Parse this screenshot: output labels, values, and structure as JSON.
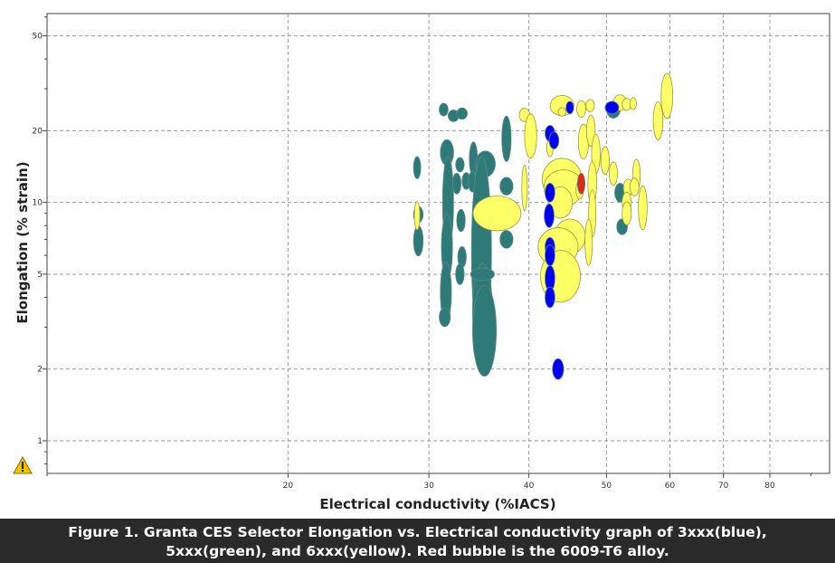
{
  "chart_data": {
    "type": "scatter",
    "title": "",
    "xlabel": "Electrical conductivity (%IACS)",
    "ylabel": "Elongation (% strain)",
    "xscale": "log",
    "yscale": "log",
    "xlim": [
      10,
      95
    ],
    "ylim": [
      0.73,
      62
    ],
    "grid": true,
    "legend": "none",
    "x_ticks": [
      20,
      30,
      40,
      50,
      60,
      70,
      80
    ],
    "y_ticks": [
      1,
      2,
      5,
      10,
      20,
      50
    ],
    "colors": {
      "blue": "#0000ee",
      "green": "#2e7a78",
      "yellow": "#ffff66",
      "red": "#e02a10",
      "outline": "#9a9a3a"
    },
    "series": [
      {
        "group": "green",
        "bubbles": [
          {
            "x": 29.0,
            "y": 14.0,
            "rx": 0.3,
            "ry": 1.5
          },
          {
            "x": 29.1,
            "y": 8.9,
            "rx": 0.4,
            "ry": 0.7
          },
          {
            "x": 29.1,
            "y": 6.9,
            "rx": 0.4,
            "ry": 1.0
          },
          {
            "x": 31.3,
            "y": 24.5,
            "rx": 0.4,
            "ry": 1.5
          },
          {
            "x": 32.2,
            "y": 23.1,
            "rx": 0.5,
            "ry": 1.3
          },
          {
            "x": 33.0,
            "y": 23.6,
            "rx": 0.5,
            "ry": 1.3
          },
          {
            "x": 31.6,
            "y": 16.2,
            "rx": 0.6,
            "ry": 2.0
          },
          {
            "x": 31.7,
            "y": 10.0,
            "rx": 0.5,
            "ry": 4.2
          },
          {
            "x": 31.6,
            "y": 6.5,
            "rx": 0.5,
            "ry": 2.0
          },
          {
            "x": 31.5,
            "y": 4.2,
            "rx": 0.5,
            "ry": 1.2
          },
          {
            "x": 31.4,
            "y": 3.3,
            "rx": 0.5,
            "ry": 0.3
          },
          {
            "x": 32.5,
            "y": 12.0,
            "rx": 0.4,
            "ry": 1.2
          },
          {
            "x": 32.8,
            "y": 14.4,
            "rx": 0.4,
            "ry": 1.0
          },
          {
            "x": 33.4,
            "y": 12.3,
            "rx": 0.4,
            "ry": 1.0
          },
          {
            "x": 32.9,
            "y": 8.4,
            "rx": 0.4,
            "ry": 0.9
          },
          {
            "x": 33.0,
            "y": 5.9,
            "rx": 0.4,
            "ry": 0.6
          },
          {
            "x": 32.8,
            "y": 5.0,
            "rx": 0.4,
            "ry": 0.5
          },
          {
            "x": 34.1,
            "y": 15.2,
            "rx": 0.4,
            "ry": 2.5
          },
          {
            "x": 34.0,
            "y": 12.2,
            "rx": 0.4,
            "ry": 1.2
          },
          {
            "x": 35.3,
            "y": 14.5,
            "rx": 1.0,
            "ry": 1.8
          },
          {
            "x": 34.9,
            "y": 6.2,
            "rx": 1.0,
            "ry": 4.5
          },
          {
            "x": 35.0,
            "y": 3.5,
            "rx": 1.0,
            "ry": 1.5
          },
          {
            "x": 35.2,
            "y": 2.9,
            "rx": 1.2,
            "ry": 1.2
          },
          {
            "x": 35.0,
            "y": 5.0,
            "rx": 1.2,
            "ry": 0.3
          },
          {
            "x": 37.5,
            "y": 18.5,
            "rx": 0.5,
            "ry": 4.0
          },
          {
            "x": 37.5,
            "y": 11.7,
            "rx": 0.7,
            "ry": 1.0
          },
          {
            "x": 37.5,
            "y": 7.0,
            "rx": 0.7,
            "ry": 0.6
          },
          {
            "x": 51.0,
            "y": 24.5,
            "rx": 1.0,
            "ry": 2.0
          },
          {
            "x": 52.0,
            "y": 11.0,
            "rx": 0.8,
            "ry": 1.0
          },
          {
            "x": 52.3,
            "y": 7.9,
            "rx": 0.8,
            "ry": 0.6
          }
        ]
      },
      {
        "group": "yellow",
        "bubbles": [
          {
            "x": 29.0,
            "y": 8.8,
            "rx": 0.2,
            "ry": 1.2
          },
          {
            "x": 36.5,
            "y": 9.0,
            "rx": 2.5,
            "ry": 1.5
          },
          {
            "x": 39.5,
            "y": 23.3,
            "rx": 0.6,
            "ry": 1.5
          },
          {
            "x": 40.2,
            "y": 19.0,
            "rx": 0.7,
            "ry": 4.0
          },
          {
            "x": 39.5,
            "y": 11.5,
            "rx": 0.2,
            "ry": 2.5
          },
          {
            "x": 44.0,
            "y": 25.5,
            "rx": 1.5,
            "ry": 2.5
          },
          {
            "x": 42.5,
            "y": 17.0,
            "rx": 0.4,
            "ry": 1.5
          },
          {
            "x": 44.0,
            "y": 12.5,
            "rx": 2.5,
            "ry": 2.5
          },
          {
            "x": 44.2,
            "y": 11.5,
            "rx": 2.5,
            "ry": 2.0
          },
          {
            "x": 43.8,
            "y": 10.0,
            "rx": 1.5,
            "ry": 1.5
          },
          {
            "x": 45.0,
            "y": 7.2,
            "rx": 2.0,
            "ry": 1.2
          },
          {
            "x": 43.5,
            "y": 6.5,
            "rx": 2.5,
            "ry": 1.2
          },
          {
            "x": 43.8,
            "y": 4.9,
            "rx": 2.5,
            "ry": 1.2
          },
          {
            "x": 44.0,
            "y": 24.0,
            "rx": 0.5,
            "ry": 1.0
          },
          {
            "x": 46.5,
            "y": 24.7,
            "rx": 0.6,
            "ry": 2.0
          },
          {
            "x": 47.7,
            "y": 25.5,
            "rx": 0.6,
            "ry": 1.5
          },
          {
            "x": 46.3,
            "y": 11.3,
            "rx": 0.5,
            "ry": 1.0
          },
          {
            "x": 46.8,
            "y": 18.0,
            "rx": 0.7,
            "ry": 3.0
          },
          {
            "x": 47.8,
            "y": 20.0,
            "rx": 0.6,
            "ry": 3.0
          },
          {
            "x": 48.5,
            "y": 16.0,
            "rx": 0.6,
            "ry": 3.0
          },
          {
            "x": 48.0,
            "y": 12.0,
            "rx": 0.6,
            "ry": 2.5
          },
          {
            "x": 48.0,
            "y": 9.0,
            "rx": 0.5,
            "ry": 2.0
          },
          {
            "x": 47.5,
            "y": 6.8,
            "rx": 0.5,
            "ry": 1.5
          },
          {
            "x": 49.8,
            "y": 15.0,
            "rx": 0.6,
            "ry": 2.0
          },
          {
            "x": 51.0,
            "y": 13.2,
            "rx": 0.6,
            "ry": 1.5
          },
          {
            "x": 52.0,
            "y": 26.2,
            "rx": 1.0,
            "ry": 2.0
          },
          {
            "x": 53.0,
            "y": 25.8,
            "rx": 0.7,
            "ry": 1.5
          },
          {
            "x": 54.0,
            "y": 26.0,
            "rx": 0.5,
            "ry": 1.5
          },
          {
            "x": 53.2,
            "y": 11.5,
            "rx": 0.7,
            "ry": 1.0
          },
          {
            "x": 53.0,
            "y": 10.0,
            "rx": 0.7,
            "ry": 1.0
          },
          {
            "x": 53.0,
            "y": 9.0,
            "rx": 0.7,
            "ry": 1.0
          },
          {
            "x": 54.5,
            "y": 13.0,
            "rx": 0.6,
            "ry": 2.0
          },
          {
            "x": 54.2,
            "y": 11.6,
            "rx": 0.7,
            "ry": 1.0
          },
          {
            "x": 55.5,
            "y": 9.5,
            "rx": 0.7,
            "ry": 2.0
          },
          {
            "x": 58.0,
            "y": 22.0,
            "rx": 0.8,
            "ry": 4.0
          },
          {
            "x": 59.5,
            "y": 28.0,
            "rx": 1.0,
            "ry": 6.0
          }
        ]
      },
      {
        "group": "blue",
        "bubbles": [
          {
            "x": 45.0,
            "y": 25.0,
            "rx": 0.5,
            "ry": 1.5
          },
          {
            "x": 42.5,
            "y": 19.5,
            "rx": 0.6,
            "ry": 1.5
          },
          {
            "x": 43.0,
            "y": 18.2,
            "rx": 0.6,
            "ry": 1.5
          },
          {
            "x": 42.5,
            "y": 11.0,
            "rx": 0.6,
            "ry": 1.0
          },
          {
            "x": 42.4,
            "y": 8.8,
            "rx": 0.6,
            "ry": 1.0
          },
          {
            "x": 42.5,
            "y": 6.5,
            "rx": 0.6,
            "ry": 0.6
          },
          {
            "x": 42.5,
            "y": 6.0,
            "rx": 0.6,
            "ry": 0.6
          },
          {
            "x": 42.5,
            "y": 4.8,
            "rx": 0.6,
            "ry": 0.6
          },
          {
            "x": 42.5,
            "y": 4.0,
            "rx": 0.6,
            "ry": 0.4
          },
          {
            "x": 43.5,
            "y": 2.0,
            "rx": 0.7,
            "ry": 0.2
          },
          {
            "x": 50.8,
            "y": 25.0,
            "rx": 1.0,
            "ry": 1.5
          }
        ]
      },
      {
        "group": "red",
        "bubbles": [
          {
            "x": 46.5,
            "y": 12.0,
            "rx": 0.5,
            "ry": 1.2
          }
        ]
      }
    ]
  },
  "warning": {
    "icon": "warning-triangle-icon"
  },
  "caption": {
    "line1": "Figure 1. Granta CES Selector Elongation vs. Electrical conductivity graph of 3xxx(blue),",
    "line2": "5xxx(green), and 6xxx(yellow). Red bubble is the 6009-T6 alloy."
  }
}
